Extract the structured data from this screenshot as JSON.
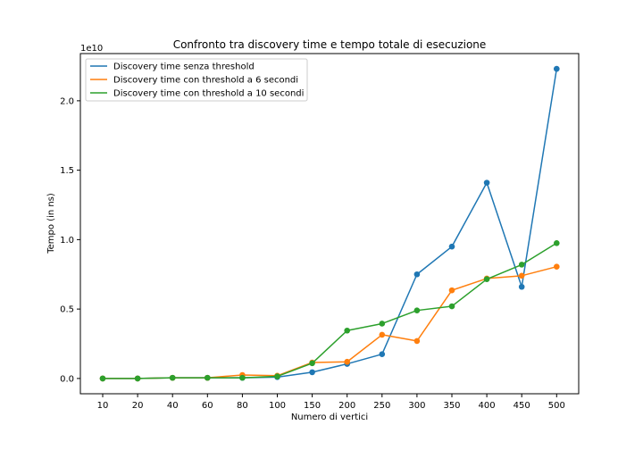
{
  "chart_data": {
    "type": "line",
    "title": "Confronto tra discovery time e tempo totale di esecuzione",
    "xlabel": "Numero di vertici",
    "ylabel": "Tempo (in ns)",
    "y_offset_label": "1e10",
    "categories": [
      "10",
      "20",
      "40",
      "60",
      "80",
      "100",
      "150",
      "200",
      "250",
      "300",
      "350",
      "400",
      "450",
      "500"
    ],
    "y_ticks": [
      0.0,
      0.5,
      1.0,
      1.5,
      2.0
    ],
    "y_tick_labels": [
      "0.0",
      "0.5",
      "1.0",
      "1.5",
      "2.0"
    ],
    "ylim": [
      -0.11,
      2.34
    ],
    "legend_position": "top-left",
    "grid": false,
    "series": [
      {
        "name": "Discovery time senza threshold",
        "color": "#1f77b4",
        "values": [
          0.0,
          0.0,
          0.005,
          0.005,
          0.005,
          0.01,
          0.045,
          0.105,
          0.175,
          0.75,
          0.95,
          1.41,
          0.66,
          2.23
        ]
      },
      {
        "name": "Discovery time con threshold a 6 secondi",
        "color": "#ff7f0e",
        "values": [
          0.0,
          0.0,
          0.005,
          0.005,
          0.025,
          0.02,
          0.115,
          0.12,
          0.315,
          0.27,
          0.635,
          0.72,
          0.74,
          0.805
        ]
      },
      {
        "name": "Discovery time con threshold a 10 secondi",
        "color": "#2ca02c",
        "values": [
          0.0,
          0.0,
          0.005,
          0.005,
          0.005,
          0.015,
          0.11,
          0.345,
          0.395,
          0.49,
          0.52,
          0.715,
          0.82,
          0.975
        ]
      }
    ]
  }
}
